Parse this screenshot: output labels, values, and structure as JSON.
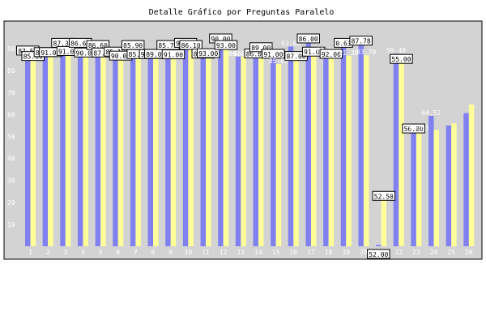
{
  "chart_data": {
    "type": "bar",
    "title": "Detalle Gráfico por Preguntas Paralelo",
    "xlabel": "",
    "ylabel": "",
    "ylim": [
      0,
      100
    ],
    "yticks": [
      10,
      20,
      30,
      40,
      50,
      60,
      70,
      80,
      90
    ],
    "grid": false,
    "legend": "none",
    "categories": [
      "1",
      "2",
      "3",
      "4",
      "5",
      "6",
      "7",
      "8",
      "9",
      "10",
      "11",
      "12",
      "13",
      "14",
      "15",
      "16",
      "17",
      "18",
      "19",
      "20",
      "21",
      "22",
      "23",
      "24",
      "25",
      "26"
    ],
    "series": [
      {
        "color": "#8080f0",
        "values": [
          87.5,
          86.78,
          91.0,
          91.0,
          90.0,
          87.0,
          90.0,
          85.9,
          90.0,
          91.0,
          86.1,
          93.0,
          86.4,
          86.17,
          86.0,
          91.0,
          93.0,
          88.0,
          91.0,
          92.0,
          0.63,
          87.78,
          52.0,
          59.4,
          55.0,
          60.63
        ]
      },
      {
        "color": "#ffff99",
        "values": [
          85.0,
          86.78,
          87.3,
          86.6,
          86.6,
          85.18,
          85.9,
          85.97,
          85.76,
          90.0,
          86.31,
          90.0,
          86.4,
          89.0,
          83.0,
          85.0,
          87.0,
          86.0,
          86.8,
          87.0,
          21.3,
          83.7,
          52.5,
          53.0,
          56.0,
          64.52
        ]
      }
    ],
    "data_labels": [
      "87.50",
      "85.00",
      "86.78",
      "91.00",
      "87.30",
      "91.00",
      "86.60",
      "90.00",
      "86.60",
      "87.00",
      "85.18",
      "90.00",
      "85.90",
      "85.97",
      "90.00",
      "89.00",
      "85.76",
      "91.00",
      "90.00",
      "86.10",
      "86.31",
      "93.00",
      "90.00",
      "93.00",
      "86.40",
      "86.17",
      "86.00",
      "89.00",
      "91.00",
      "85.00",
      "93.00",
      "87.00",
      "86.00",
      "91.00",
      "86.80",
      "92.00",
      "0.63",
      "21.30",
      "87.78",
      "83.70",
      "52.00",
      "52.50",
      "59.40",
      "55.00",
      "56.00",
      "60.63",
      "64.52"
    ]
  }
}
